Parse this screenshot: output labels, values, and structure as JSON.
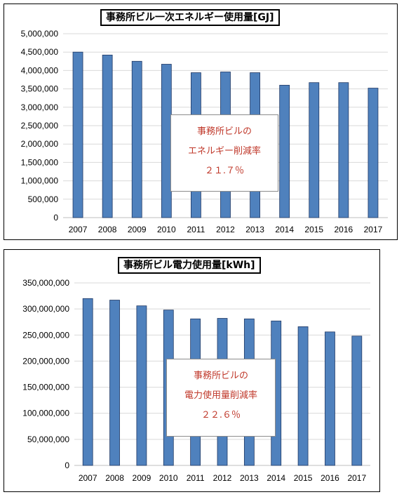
{
  "chart_data": [
    {
      "type": "bar",
      "title": "事務所ビル一次エネルギー使用量[GJ]",
      "categories": [
        "2007",
        "2008",
        "2009",
        "2010",
        "2011",
        "2012",
        "2013",
        "2014",
        "2015",
        "2016",
        "2017"
      ],
      "values": [
        4500000,
        4420000,
        4250000,
        4170000,
        3940000,
        3960000,
        3940000,
        3600000,
        3670000,
        3670000,
        3520000
      ],
      "ylim": [
        0,
        5000000
      ],
      "yticks": [
        "0",
        "500,000",
        "1,000,000",
        "1,500,000",
        "2,000,000",
        "2,500,000",
        "3,000,000",
        "3,500,000",
        "4,000,000",
        "4,500,000",
        "5,000,000"
      ],
      "grid": true,
      "bar_color": "#4f81bd",
      "annotation": {
        "line1": "事務所ビルの",
        "line2": "エネルギー削減率",
        "line3": "２１.７％",
        "color": "#c0392b"
      }
    },
    {
      "type": "bar",
      "title": "事務所ビル電力使用量[kWh]",
      "categories": [
        "2007",
        "2008",
        "2009",
        "2010",
        "2011",
        "2012",
        "2013",
        "2014",
        "2015",
        "2016",
        "2017"
      ],
      "values": [
        320000000,
        317000000,
        306000000,
        298000000,
        281000000,
        282000000,
        281000000,
        277000000,
        266000000,
        256000000,
        248000000
      ],
      "ylim": [
        0,
        350000000
      ],
      "yticks": [
        "0",
        "50,000,000",
        "100,000,000",
        "150,000,000",
        "200,000,000",
        "250,000,000",
        "300,000,000",
        "350,000,000"
      ],
      "grid": true,
      "bar_color": "#4f81bd",
      "annotation": {
        "line1": "事務所ビルの",
        "line2": "電力使用量削減率",
        "line3": "２２.６％",
        "color": "#c0392b"
      }
    }
  ]
}
